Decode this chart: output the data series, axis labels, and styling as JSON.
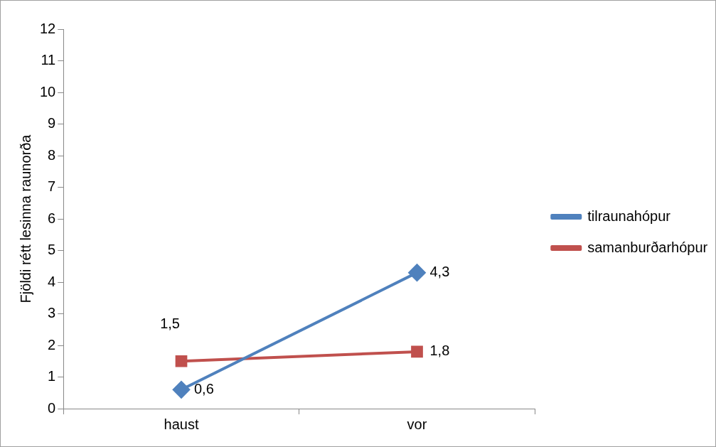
{
  "chart_data": {
    "type": "line",
    "ylabel": "Fjöldi rétt lesinna raunorða",
    "categories": [
      "haust",
      "vor"
    ],
    "ylim": [
      0,
      12
    ],
    "yticks": [
      0,
      1,
      2,
      3,
      4,
      5,
      6,
      7,
      8,
      9,
      10,
      11,
      12
    ],
    "grid": false,
    "legend": "right",
    "series": [
      {
        "name": "tilraunahópur",
        "color": "#4f81bd",
        "values": [
          0.6,
          4.3
        ],
        "marker": "diamond",
        "value_labels": [
          "0,6",
          "4,3"
        ]
      },
      {
        "name": "samanburðarhópur",
        "color": "#c0504d",
        "values": [
          1.5,
          1.8
        ],
        "marker": "square",
        "value_labels": [
          "1,5",
          "1,8"
        ]
      }
    ]
  }
}
